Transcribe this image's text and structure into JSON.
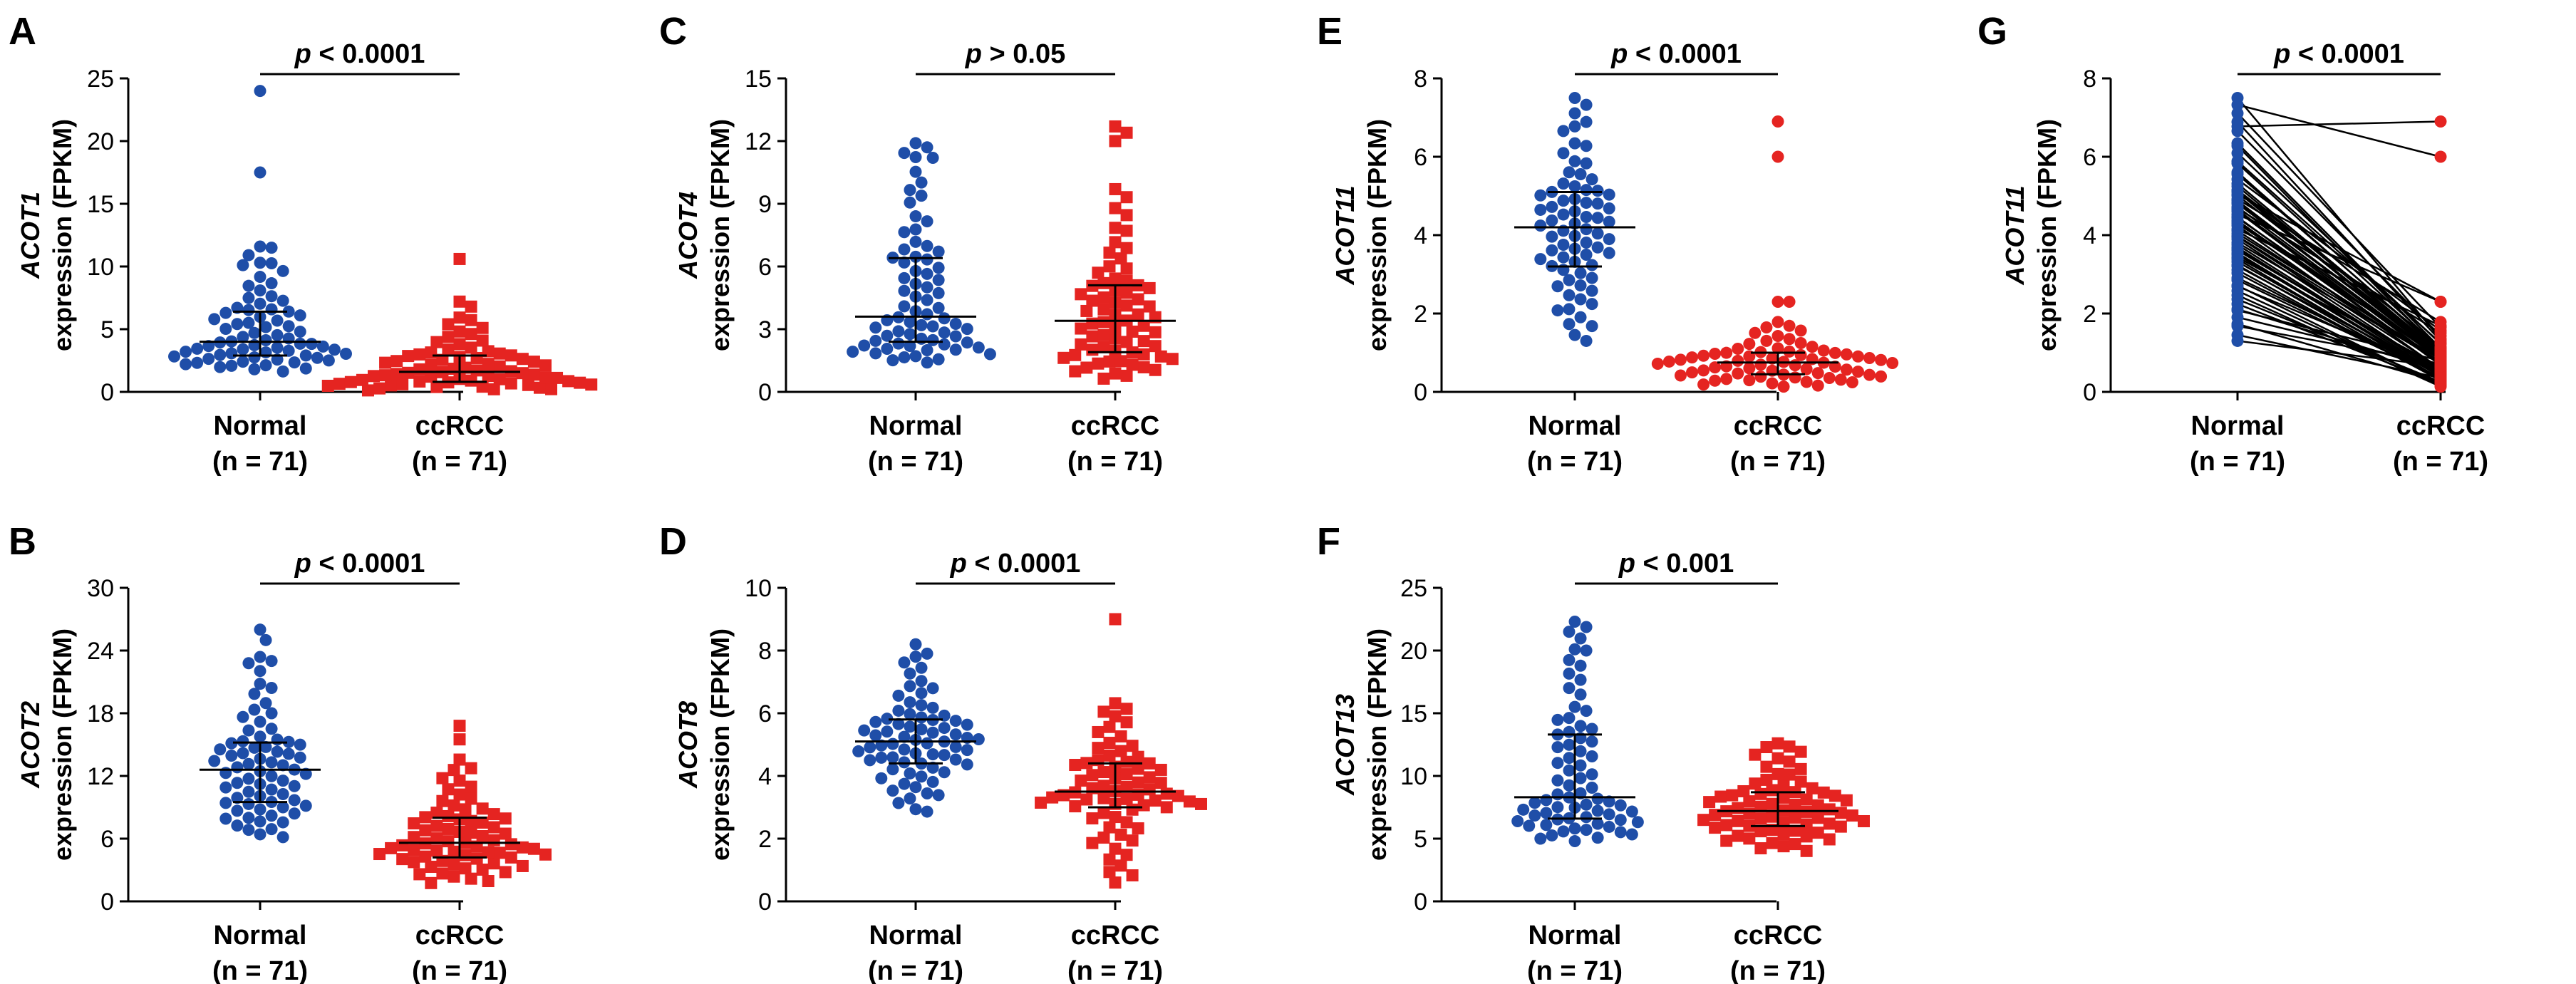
{
  "colors": {
    "normal": "#1f4ea8",
    "ccrcc": "#e52421",
    "axis": "#000000",
    "pair_line": "#000000"
  },
  "chart_data": [
    {
      "panel": "A",
      "type": "scatter",
      "gene": "ACOT1",
      "ylabel_suffix": "expression (FPKM)",
      "ylim": [
        0,
        25
      ],
      "yticks": [
        "0",
        "5",
        "10",
        "15",
        "20",
        "25"
      ],
      "categories": [
        {
          "name": "Normal",
          "n": "(n = 71)"
        },
        {
          "name": "ccRCC",
          "n": "(n = 71)"
        }
      ],
      "pvalue": {
        "p": "p",
        "text": " < 0.0001"
      },
      "series": [
        {
          "name": "Normal",
          "marker": "circle",
          "median": 4.0,
          "q1": 2.9,
          "q3": 6.4,
          "min": 1.5,
          "max": 24,
          "outliers": [
            24,
            17.5,
            11.5,
            10.3
          ]
        },
        {
          "name": "ccRCC",
          "marker": "square",
          "median": 1.6,
          "q1": 0.8,
          "q3": 2.9,
          "min": 0.05,
          "max": 10.6,
          "outliers": [
            10.6,
            7.2,
            6.8
          ]
        }
      ]
    },
    {
      "panel": "B",
      "type": "scatter",
      "gene": "ACOT2",
      "ylabel_suffix": "expression (FPKM)",
      "ylim": [
        0,
        30
      ],
      "yticks": [
        "0",
        "6",
        "12",
        "18",
        "24",
        "30"
      ],
      "categories": [
        {
          "name": "Normal",
          "n": "(n = 71)"
        },
        {
          "name": "ccRCC",
          "n": "(n = 71)"
        }
      ],
      "pvalue": {
        "p": "p",
        "text": " < 0.0001"
      },
      "series": [
        {
          "name": "Normal",
          "marker": "circle",
          "median": 12.6,
          "q1": 9.5,
          "q3": 15.2,
          "min": 5.8,
          "max": 26,
          "outliers": [
            26,
            25,
            23
          ]
        },
        {
          "name": "ccRCC",
          "marker": "square",
          "median": 5.6,
          "q1": 4.2,
          "q3": 8.0,
          "min": 1.5,
          "max": 16.8,
          "outliers": [
            16.8,
            15.5
          ]
        }
      ]
    },
    {
      "panel": "C",
      "type": "scatter",
      "gene": "ACOT4",
      "ylabel_suffix": "expression (FPKM)",
      "ylim": [
        0,
        15
      ],
      "yticks": [
        "0",
        "3",
        "6",
        "9",
        "12",
        "15"
      ],
      "categories": [
        {
          "name": "Normal",
          "n": "(n = 71)"
        },
        {
          "name": "ccRCC",
          "n": "(n = 71)"
        }
      ],
      "pvalue": {
        "p": "p",
        "text": " > 0.05"
      },
      "series": [
        {
          "name": "Normal",
          "marker": "circle",
          "median": 3.6,
          "q1": 2.4,
          "q3": 6.4,
          "min": 1.3,
          "max": 11.9,
          "outliers": [
            11.9,
            11.7,
            11.2
          ]
        },
        {
          "name": "ccRCC",
          "marker": "square",
          "median": 3.4,
          "q1": 1.9,
          "q3": 5.1,
          "min": 0.5,
          "max": 12.7,
          "outliers": [
            12.7,
            12.4,
            12.0
          ]
        }
      ]
    },
    {
      "panel": "D",
      "type": "scatter",
      "gene": "ACOT8",
      "ylabel_suffix": "expression (FPKM)",
      "ylim": [
        0,
        10
      ],
      "yticks": [
        "0",
        "2",
        "4",
        "6",
        "8",
        "10"
      ],
      "categories": [
        {
          "name": "Normal",
          "n": "(n = 71)"
        },
        {
          "name": "ccRCC",
          "n": "(n = 71)"
        }
      ],
      "pvalue": {
        "p": "p",
        "text": " < 0.0001"
      },
      "series": [
        {
          "name": "Normal",
          "marker": "circle",
          "median": 5.1,
          "q1": 4.4,
          "q3": 5.8,
          "min": 2.7,
          "max": 8.2,
          "outliers": [
            8.2,
            7.9
          ]
        },
        {
          "name": "ccRCC",
          "marker": "square",
          "median": 3.5,
          "q1": 3.0,
          "q3": 4.4,
          "min": 0.6,
          "max": 9.0,
          "outliers": [
            9.0,
            0.6
          ]
        }
      ]
    },
    {
      "panel": "E",
      "type": "scatter",
      "gene": "ACOT11",
      "ylabel_suffix": "expression (FPKM)",
      "ylim": [
        0,
        8
      ],
      "yticks": [
        "0",
        "2",
        "4",
        "6",
        "8"
      ],
      "categories": [
        {
          "name": "Normal",
          "n": "(n = 71)"
        },
        {
          "name": "ccRCC",
          "n": "(n = 71)"
        }
      ],
      "pvalue": {
        "p": "p",
        "text": " < 0.0001"
      },
      "series": [
        {
          "name": "Normal",
          "marker": "circle",
          "median": 4.2,
          "q1": 3.2,
          "q3": 5.1,
          "min": 1.1,
          "max": 7.5,
          "outliers": [
            7.5
          ]
        },
        {
          "name": "ccRCC",
          "marker": "circle",
          "median": 0.75,
          "q1": 0.45,
          "q3": 1.0,
          "min": 0.1,
          "max": 6.9,
          "outliers": [
            6.9,
            6.0,
            2.3,
            2.3
          ]
        }
      ]
    },
    {
      "panel": "F",
      "type": "scatter",
      "gene": "ACOT13",
      "ylabel_suffix": "expression (FPKM)",
      "ylim": [
        0,
        25
      ],
      "yticks": [
        "0",
        "5",
        "10",
        "15",
        "20",
        "25"
      ],
      "categories": [
        {
          "name": "Normal",
          "n": "(n = 71)"
        },
        {
          "name": "ccRCC",
          "n": "(n = 71)"
        }
      ],
      "pvalue": {
        "p": "p",
        "text": " < 0.001"
      },
      "series": [
        {
          "name": "Normal",
          "marker": "circle",
          "median": 8.3,
          "q1": 6.6,
          "q3": 13.3,
          "min": 4.6,
          "max": 22.3,
          "outliers": [
            22.3,
            21.5,
            20.0
          ]
        },
        {
          "name": "ccRCC",
          "marker": "square",
          "median": 7.2,
          "q1": 6.0,
          "q3": 8.7,
          "min": 3.8,
          "max": 12.6,
          "outliers": [
            12.6,
            12.3
          ]
        }
      ]
    },
    {
      "panel": "G",
      "type": "paired",
      "gene": "ACOT11",
      "ylabel_suffix": "expression (FPKM)",
      "ylim": [
        0,
        8
      ],
      "yticks": [
        "0",
        "2",
        "4",
        "6",
        "8"
      ],
      "categories": [
        {
          "name": "Normal",
          "n": "(n = 71)"
        },
        {
          "name": "ccRCC",
          "n": "(n = 71)"
        }
      ],
      "pvalue": {
        "p": "p",
        "text": " < 0.0001"
      },
      "pairs_note": "71 paired samples; Normal values 1.1–7.5, ccRCC values 0.1–6.9"
    }
  ]
}
